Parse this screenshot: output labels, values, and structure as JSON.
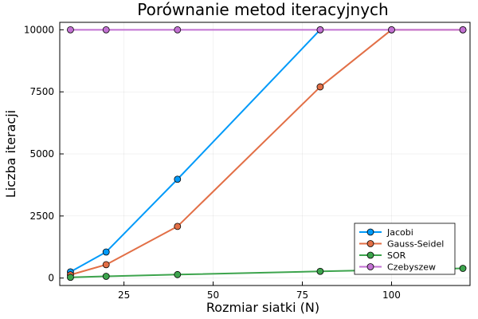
{
  "chart_data": {
    "type": "line",
    "title": "Porównanie metod iteracyjnych",
    "xlabel": "Rozmiar siatki (N)",
    "ylabel": "Liczba iteracji",
    "xlim": [
      7,
      122
    ],
    "ylim": [
      -300,
      10300
    ],
    "xticks": [
      25,
      50,
      75,
      100
    ],
    "yticks": [
      0,
      2500,
      5000,
      7500,
      10000
    ],
    "grid": true,
    "legend_position": "bottom-right",
    "series": [
      {
        "name": "Jacobi",
        "color": "#009af9",
        "x": [
          10,
          20,
          40,
          80
        ],
        "y": [
          250,
          1050,
          3980,
          10000
        ]
      },
      {
        "name": "Gauss-Seidel",
        "color": "#e26f46",
        "x": [
          10,
          20,
          40,
          80,
          100,
          120
        ],
        "y": [
          130,
          540,
          2080,
          7700,
          10000,
          10000
        ]
      },
      {
        "name": "SOR",
        "color": "#3da44d",
        "x": [
          10,
          20,
          40,
          80,
          100,
          120
        ],
        "y": [
          30,
          70,
          140,
          270,
          330,
          390
        ]
      },
      {
        "name": "Czebyszew",
        "color": "#c271d2",
        "x": [
          10,
          20,
          40,
          80,
          100,
          120
        ],
        "y": [
          10000,
          10000,
          10000,
          10000,
          10000,
          10000
        ]
      }
    ]
  }
}
